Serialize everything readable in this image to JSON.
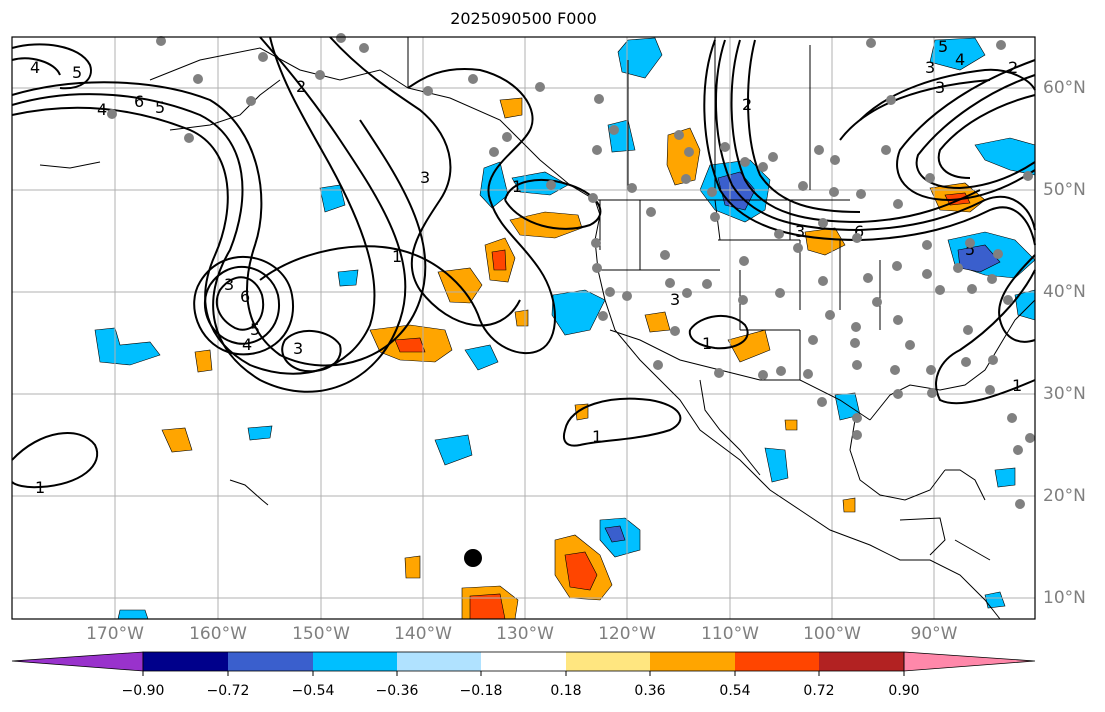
{
  "title": "2025090500 F000",
  "lon_labels": [
    "170°W",
    "160°W",
    "150°W",
    "140°W",
    "130°W",
    "120°W",
    "110°W",
    "100°W",
    "90°W"
  ],
  "lat_labels": [
    "60°N",
    "50°N",
    "40°N",
    "30°N",
    "20°N",
    "10°N"
  ],
  "colorbar": {
    "ticks": [
      "−0.90",
      "−0.72",
      "−0.54",
      "−0.36",
      "−0.18",
      "0.18",
      "0.36",
      "0.54",
      "0.72",
      "0.90"
    ],
    "colors": [
      "#9932cc",
      "#00008b",
      "#3a5fcd",
      "#00bfff",
      "#b0e2ff",
      "#ffffff",
      "#ffe680",
      "#ffa500",
      "#ff4500",
      "#b22222",
      "#ff88aa"
    ]
  },
  "contour_labels": [
    "4",
    "5",
    "4",
    "6",
    "5",
    "2",
    "3",
    "3",
    "6",
    "4",
    "5",
    "3",
    "1",
    "1",
    "1",
    "1",
    "2",
    "3",
    "3",
    "3",
    "4",
    "5",
    "5",
    "6",
    "3",
    "2",
    "1",
    "1"
  ],
  "marker": {
    "label": "point",
    "color": "#000000"
  }
}
